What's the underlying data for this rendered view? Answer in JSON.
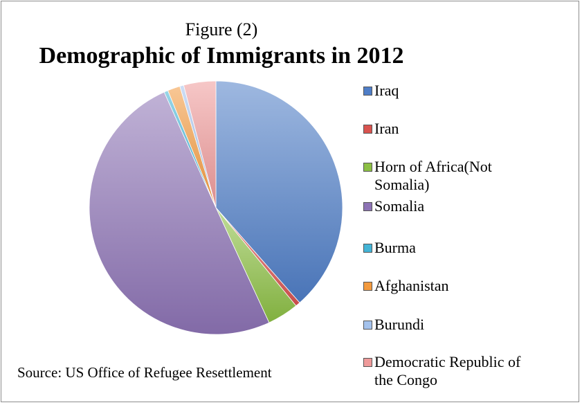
{
  "chart_data": {
    "type": "pie",
    "supertitle": "Figure (2)",
    "title": "Demographic of Immigrants in 2012",
    "source": "Source: US Office of Refugee Resettlement",
    "legend_position": "right",
    "categories": [
      "Iraq",
      "Iran",
      "Horn of Africa(Not Somalia)",
      "Somalia",
      "Burma",
      "Afghanistan",
      "Burundi",
      "Democratic Republic of the Congo"
    ],
    "values": [
      38.5,
      0.6,
      4.0,
      50.2,
      0.5,
      1.6,
      0.5,
      4.1
    ],
    "colors": [
      "#4f7ec7",
      "#d9534f",
      "#8cbf44",
      "#8d73b5",
      "#43b4d6",
      "#f39a3e",
      "#a4c2ec",
      "#ef9a9a"
    ],
    "legend_labels": [
      "Iraq",
      "Iran",
      "Horn of Africa(Not Somalia)",
      "Somalia",
      "Burma",
      "Afghanistan",
      "Burundi",
      "Democratic Republic of the Congo"
    ]
  }
}
